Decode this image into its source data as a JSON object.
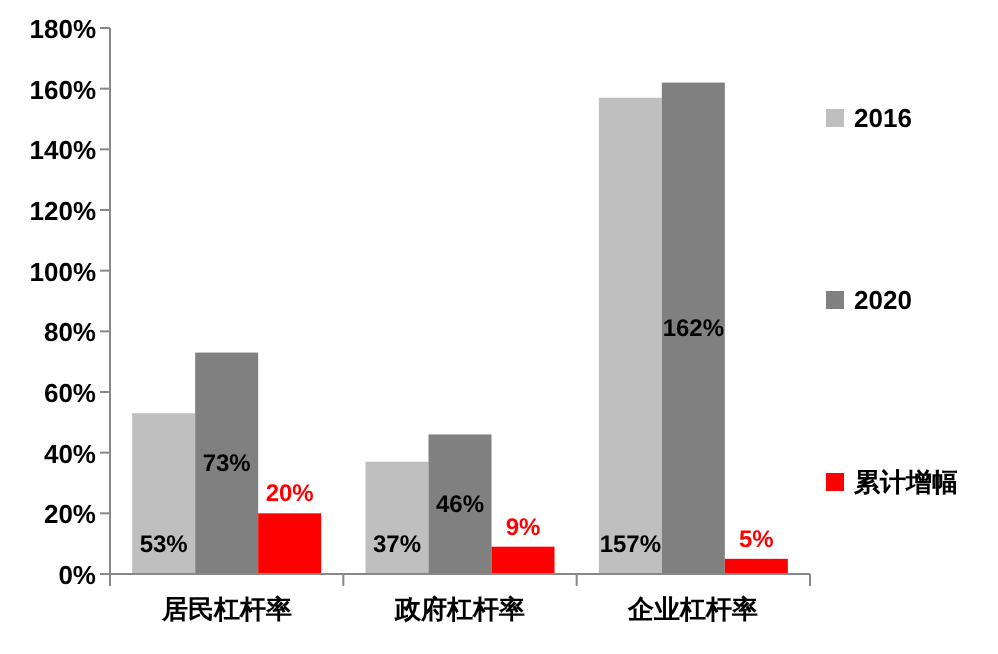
{
  "chart_data": {
    "type": "bar",
    "categories": [
      "居民杠杆率",
      "政府杠杆率",
      "企业杠杆率"
    ],
    "series": [
      {
        "name": "2016",
        "color": "#bfbfbf",
        "values": [
          53,
          37,
          157
        ],
        "value_labels": [
          "53%",
          "37%",
          "157%"
        ]
      },
      {
        "name": "2020",
        "color": "#808080",
        "values": [
          73,
          46,
          162
        ],
        "value_labels": [
          "73%",
          "46%",
          "162%"
        ]
      },
      {
        "name": "累计增幅",
        "color": "#ff0000",
        "values": [
          20,
          9,
          5
        ],
        "value_labels": [
          "20%",
          "9%",
          "5%"
        ]
      }
    ],
    "ylim": [
      0,
      180
    ],
    "yticks": [
      {
        "value": 0,
        "label": "0%"
      },
      {
        "value": 20,
        "label": "20%"
      },
      {
        "value": 40,
        "label": "40%"
      },
      {
        "value": 60,
        "label": "60%"
      },
      {
        "value": 80,
        "label": "80%"
      },
      {
        "value": 100,
        "label": "100%"
      },
      {
        "value": 120,
        "label": "120%"
      },
      {
        "value": 140,
        "label": "140%"
      },
      {
        "value": 160,
        "label": "160%"
      },
      {
        "value": 180,
        "label": "180%"
      }
    ],
    "grid": false,
    "legend": "right"
  }
}
